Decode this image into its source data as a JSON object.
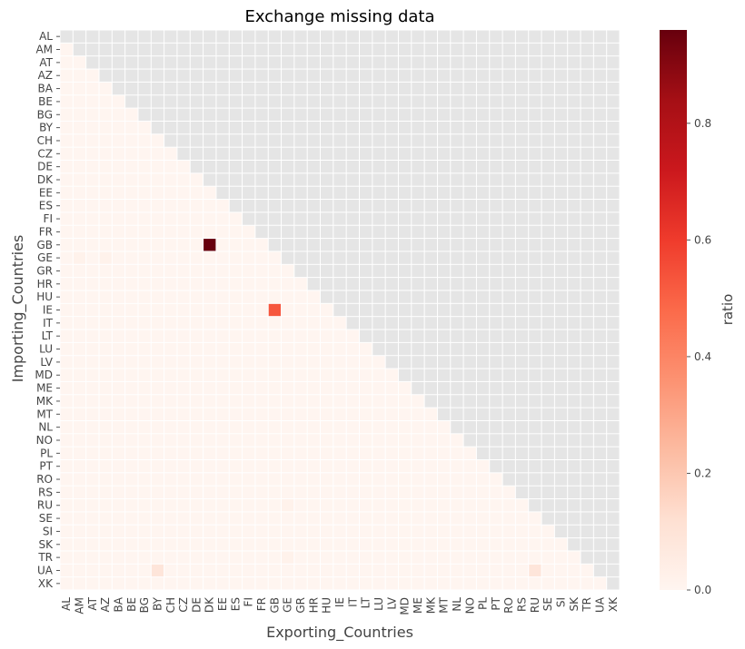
{
  "chart_data": {
    "type": "heatmap",
    "title": "Exchange missing data",
    "xlabel": "Exporting_Countries",
    "ylabel": "Importing_Countries",
    "countries": [
      "AL",
      "AM",
      "AT",
      "AZ",
      "BA",
      "BE",
      "BG",
      "BY",
      "CH",
      "CZ",
      "DE",
      "DK",
      "EE",
      "ES",
      "FI",
      "FR",
      "GB",
      "GE",
      "GR",
      "HR",
      "HU",
      "IE",
      "IT",
      "LT",
      "LU",
      "LV",
      "MD",
      "ME",
      "MK",
      "MT",
      "NL",
      "NO",
      "PL",
      "PT",
      "RO",
      "RS",
      "RU",
      "SE",
      "SI",
      "SK",
      "TR",
      "UA",
      "XK"
    ],
    "mask": "upper-triangle",
    "default_value": 0.0,
    "nonzero_cells": [
      {
        "importer": "GB",
        "exporter": "DK",
        "value": 0.96
      },
      {
        "importer": "IE",
        "exporter": "GB",
        "value": 0.53
      },
      {
        "importer": "GE",
        "exporter": "AM",
        "value": 0.02
      },
      {
        "importer": "GE",
        "exporter": "AZ",
        "value": 0.02
      },
      {
        "importer": "RU",
        "exporter": "GE",
        "value": 0.02
      },
      {
        "importer": "TR",
        "exporter": "GE",
        "value": 0.02
      },
      {
        "importer": "UA",
        "exporter": "BY",
        "value": 0.09
      },
      {
        "importer": "UA",
        "exporter": "RU",
        "value": 0.09
      }
    ],
    "colorbar": {
      "label": "ratio",
      "vmin": 0.0,
      "vmax": 0.96,
      "ticks": [
        0.0,
        0.2,
        0.4,
        0.6,
        0.8
      ],
      "tick_labels": [
        "0.0",
        "0.2",
        "0.4",
        "0.6",
        "0.8"
      ],
      "colormap": "Reds",
      "color_stops": [
        "#fff5f0",
        "#fee0d2",
        "#fcbba1",
        "#fc9272",
        "#fb6a4a",
        "#ef3b2c",
        "#cb181d",
        "#a50f15",
        "#67000d"
      ]
    },
    "mask_color": "#e5e5e5",
    "grid": true
  }
}
